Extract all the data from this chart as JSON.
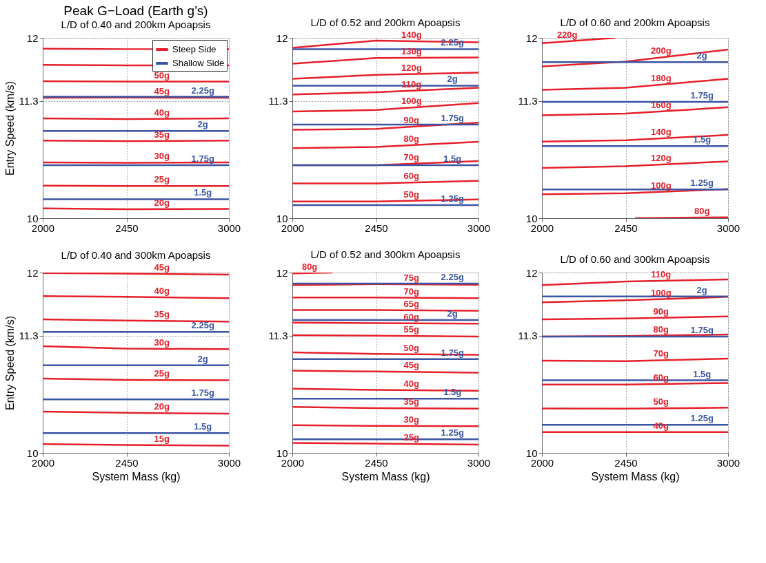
{
  "chart_data": [
    {
      "type": "line",
      "title": "Peak G−Load (Earth g’s)",
      "subtitle": "L/D of 0.40 and 200km Apoapsis",
      "ylabel": "Entry Speed (km/s)",
      "xlim": [
        2000,
        3000
      ],
      "ylim": [
        10,
        12
      ],
      "xticks": [
        2000,
        2450,
        3000
      ],
      "yticks": [
        10,
        11.3,
        12
      ],
      "grid": true,
      "legend": "top right",
      "marker": "none",
      "line_style": "solid",
      "x": [
        2000,
        2450,
        3000
      ],
      "series": [
        {
          "name": "Steep Side",
          "color": "#e5202b",
          "values": [
            11.88,
            11.875,
            11.875
          ]
        },
        {
          "color": "#e5202b",
          "values": [
            11.7,
            11.695,
            11.695
          ]
        },
        {
          "color": "#e5202b",
          "values": [
            11.52,
            11.515,
            11.515
          ]
        },
        {
          "color": "#e5202b",
          "values": [
            11.335,
            11.337,
            11.335
          ]
        },
        {
          "color": "#e5202b",
          "values": [
            11.107,
            11.1,
            11.107
          ]
        },
        {
          "color": "#e5202b",
          "values": [
            10.86,
            10.855,
            10.86
          ]
        },
        {
          "color": "#e5202b",
          "values": [
            10.618,
            10.615,
            10.618
          ]
        },
        {
          "color": "#e5202b",
          "values": [
            10.36,
            10.357,
            10.357
          ]
        },
        {
          "color": "#e5202b",
          "values": [
            10.108,
            10.1,
            10.104
          ]
        },
        {
          "name": "Shallow Side",
          "color": "#3b55a3",
          "values": [
            11.347,
            11.347,
            11.347
          ]
        },
        {
          "color": "#3b55a3",
          "values": [
            10.967,
            10.967,
            10.967
          ]
        },
        {
          "color": "#3b55a3",
          "values": [
            10.588,
            10.588,
            10.588
          ]
        },
        {
          "color": "#3b55a3",
          "values": [
            10.21,
            10.21,
            10.21
          ]
        }
      ],
      "annotations": [
        {
          "text": "50g",
          "x": 2640,
          "y": 11.515
        },
        {
          "text": "45g",
          "x": 2640,
          "y": 11.336
        },
        {
          "text": "40g",
          "x": 2640,
          "y": 11.103
        },
        {
          "text": "35g",
          "x": 2640,
          "y": 10.857
        },
        {
          "text": "30g",
          "x": 2640,
          "y": 10.616
        },
        {
          "text": "25g",
          "x": 2640,
          "y": 10.357
        },
        {
          "text": "20g",
          "x": 2640,
          "y": 10.101
        },
        {
          "text": "2.25g",
          "x": 2860,
          "y": 11.347
        },
        {
          "text": "2g",
          "x": 2860,
          "y": 10.967
        },
        {
          "text": "1.75g",
          "x": 2860,
          "y": 10.588
        },
        {
          "text": "1.5g",
          "x": 2860,
          "y": 10.21
        }
      ]
    },
    {
      "type": "line",
      "title": "L/D of 0.52 and 200km Apoapsis",
      "xlim": [
        2000,
        3000
      ],
      "ylim": [
        10,
        12
      ],
      "xticks": [
        2000,
        2450,
        3000
      ],
      "yticks": [
        10,
        11.3,
        12
      ],
      "grid": true,
      "marker": "none",
      "line_style": "solid",
      "x": [
        2000,
        2450,
        3000
      ],
      "series": [
        {
          "color": "#e5202b",
          "values": [
            11.89,
            11.97,
            11.95
          ]
        },
        {
          "color": "#e5202b",
          "values": [
            11.714,
            11.776,
            11.783
          ]
        },
        {
          "color": "#e5202b",
          "values": [
            11.545,
            11.59,
            11.615
          ]
        },
        {
          "color": "#e5202b",
          "values": [
            11.373,
            11.396,
            11.446
          ]
        },
        {
          "color": "#e5202b",
          "values": [
            11.183,
            11.2,
            11.276
          ]
        },
        {
          "color": "#e5202b",
          "values": [
            10.98,
            10.99,
            11.06
          ]
        },
        {
          "color": "#e5202b",
          "values": [
            10.777,
            10.79,
            10.847
          ]
        },
        {
          "color": "#e5202b",
          "values": [
            10.588,
            10.588,
            10.634
          ]
        },
        {
          "color": "#e5202b",
          "values": [
            10.385,
            10.385,
            10.415
          ]
        },
        {
          "color": "#e5202b",
          "values": [
            10.185,
            10.185,
            10.208
          ]
        },
        {
          "color": "#3b55a3",
          "values": [
            11.875,
            11.875,
            11.875
          ]
        },
        {
          "color": "#3b55a3",
          "values": [
            11.47,
            11.47,
            11.47
          ]
        },
        {
          "color": "#3b55a3",
          "values": [
            11.038,
            11.038,
            11.038
          ]
        },
        {
          "color": "#3b55a3",
          "values": [
            10.588,
            10.588,
            10.588
          ]
        },
        {
          "color": "#3b55a3",
          "values": [
            10.145,
            10.145,
            10.145
          ]
        }
      ],
      "annotations": [
        {
          "text": "140g",
          "x": 2640,
          "y": 11.963
        },
        {
          "text": "130g",
          "x": 2640,
          "y": 11.778
        },
        {
          "text": "120g",
          "x": 2640,
          "y": 11.599
        },
        {
          "text": "110g",
          "x": 2640,
          "y": 11.413
        },
        {
          "text": "100g",
          "x": 2640,
          "y": 11.226
        },
        {
          "text": "90g",
          "x": 2640,
          "y": 11.014
        },
        {
          "text": "80g",
          "x": 2640,
          "y": 10.81
        },
        {
          "text": "70g",
          "x": 2640,
          "y": 10.604
        },
        {
          "text": "60g",
          "x": 2640,
          "y": 10.395
        },
        {
          "text": "50g",
          "x": 2640,
          "y": 10.193
        },
        {
          "text": "2.25g",
          "x": 2860,
          "y": 11.875
        },
        {
          "text": "2g",
          "x": 2860,
          "y": 11.47
        },
        {
          "text": "1.75g",
          "x": 2860,
          "y": 11.038
        },
        {
          "text": "1.5g",
          "x": 2860,
          "y": 10.588
        },
        {
          "text": "1.25g",
          "x": 2860,
          "y": 10.145
        }
      ]
    },
    {
      "type": "line",
      "title": "L/D of 0.60 and 200km Apoapsis",
      "xlim": [
        2000,
        3000
      ],
      "ylim": [
        10,
        12
      ],
      "xticks": [
        2000,
        2450,
        3000
      ],
      "yticks": [
        10,
        11.3,
        12
      ],
      "grid": true,
      "marker": "none",
      "line_style": "solid",
      "x": [
        2000,
        2450,
        3000
      ],
      "series": [
        {
          "color": "#e5202b",
          "x": [
            2000,
            2395
          ],
          "values": [
            11.94,
            12.0
          ]
        },
        {
          "color": "#e5202b",
          "values": [
            11.684,
            11.737,
            11.87
          ]
        },
        {
          "color": "#e5202b",
          "values": [
            11.423,
            11.446,
            11.546
          ]
        },
        {
          "color": "#e5202b",
          "values": [
            11.142,
            11.16,
            11.23
          ]
        },
        {
          "color": "#e5202b",
          "values": [
            10.85,
            10.865,
            10.923
          ]
        },
        {
          "color": "#e5202b",
          "values": [
            10.558,
            10.577,
            10.63
          ]
        },
        {
          "color": "#e5202b",
          "values": [
            10.265,
            10.277,
            10.323
          ]
        },
        {
          "color": "#e5202b",
          "x": [
            2500,
            3000
          ],
          "values": [
            10.0,
            10.01
          ]
        },
        {
          "color": "#3b55a3",
          "values": [
            11.73,
            11.73,
            11.73
          ]
        },
        {
          "color": "#3b55a3",
          "values": [
            11.29,
            11.29,
            11.29
          ]
        },
        {
          "color": "#3b55a3",
          "values": [
            10.8,
            10.8,
            10.8
          ]
        },
        {
          "color": "#3b55a3",
          "values": [
            10.318,
            10.318,
            10.318
          ]
        }
      ],
      "annotations": [
        {
          "text": "220g",
          "x": 2136,
          "y": 11.961
        },
        {
          "text": "200g",
          "x": 2640,
          "y": 11.783
        },
        {
          "text": "180g",
          "x": 2640,
          "y": 11.48
        },
        {
          "text": "160g",
          "x": 2640,
          "y": 11.184
        },
        {
          "text": "140g",
          "x": 2640,
          "y": 10.885
        },
        {
          "text": "120g",
          "x": 2640,
          "y": 10.595
        },
        {
          "text": "100g",
          "x": 2640,
          "y": 10.293
        },
        {
          "text": "80g",
          "x": 2860,
          "y": 10.007
        },
        {
          "text": "2g",
          "x": 2860,
          "y": 11.73
        },
        {
          "text": "1.75g",
          "x": 2860,
          "y": 11.29
        },
        {
          "text": "1.5g",
          "x": 2860,
          "y": 10.8
        },
        {
          "text": "1.25g",
          "x": 2860,
          "y": 10.318
        }
      ]
    },
    {
      "type": "line",
      "title": "L/D of 0.40 and 300km Apoapsis",
      "xlabel": "System Mass (kg)",
      "ylabel": "Entry Speed (km/s)",
      "xlim": [
        2000,
        3000
      ],
      "ylim": [
        10,
        12
      ],
      "xticks": [
        2000,
        2450,
        3000
      ],
      "yticks": [
        10,
        11.3,
        12
      ],
      "grid": true,
      "marker": "none",
      "line_style": "solid",
      "x": [
        2000,
        2450,
        3000
      ],
      "series": [
        {
          "color": "#e5202b",
          "values": [
            11.995,
            11.988,
            11.977
          ]
        },
        {
          "color": "#e5202b",
          "values": [
            11.739,
            11.73,
            11.716
          ]
        },
        {
          "color": "#e5202b",
          "values": [
            11.48,
            11.468,
            11.457
          ]
        },
        {
          "color": "#e5202b",
          "values": [
            11.184,
            11.156,
            11.151
          ]
        },
        {
          "color": "#e5202b",
          "values": [
            10.825,
            10.809,
            10.805
          ]
        },
        {
          "color": "#e5202b",
          "values": [
            10.458,
            10.444,
            10.435
          ]
        },
        {
          "color": "#e5202b",
          "values": [
            10.097,
            10.088,
            10.081
          ]
        },
        {
          "color": "#3b55a3",
          "values": [
            11.341,
            11.341,
            11.341
          ]
        },
        {
          "color": "#3b55a3",
          "values": [
            10.971,
            10.971,
            10.971
          ]
        },
        {
          "color": "#3b55a3",
          "values": [
            10.594,
            10.594,
            10.594
          ]
        },
        {
          "color": "#3b55a3",
          "values": [
            10.22,
            10.22,
            10.22
          ]
        }
      ],
      "annotations": [
        {
          "text": "45g",
          "x": 2640,
          "y": 11.984
        },
        {
          "text": "40g",
          "x": 2640,
          "y": 11.725
        },
        {
          "text": "35g",
          "x": 2640,
          "y": 11.464
        },
        {
          "text": "30g",
          "x": 2640,
          "y": 11.154
        },
        {
          "text": "25g",
          "x": 2640,
          "y": 10.808
        },
        {
          "text": "20g",
          "x": 2640,
          "y": 10.441
        },
        {
          "text": "15g",
          "x": 2640,
          "y": 10.086
        },
        {
          "text": "2.25g",
          "x": 2860,
          "y": 11.341
        },
        {
          "text": "2g",
          "x": 2860,
          "y": 10.971
        },
        {
          "text": "1.75g",
          "x": 2860,
          "y": 10.594
        },
        {
          "text": "1.5g",
          "x": 2860,
          "y": 10.22
        }
      ]
    },
    {
      "type": "line",
      "title": "L/D of 0.52 and 300km Apoapsis",
      "xlabel": "System Mass (kg)",
      "xlim": [
        2000,
        3000
      ],
      "ylim": [
        10,
        12
      ],
      "xticks": [
        2000,
        2450,
        3000
      ],
      "yticks": [
        10,
        11.3,
        12
      ],
      "grid": true,
      "marker": "none",
      "line_style": "solid",
      "x": [
        2000,
        2450,
        3000
      ],
      "series": [
        {
          "color": "#e5202b",
          "x": [
            2000,
            2216
          ],
          "values": [
            11.99,
            12.0
          ]
        },
        {
          "color": "#e5202b",
          "values": [
            11.86,
            11.873,
            11.865
          ]
        },
        {
          "color": "#e5202b",
          "values": [
            11.723,
            11.723,
            11.716
          ]
        },
        {
          "color": "#e5202b",
          "values": [
            11.584,
            11.584,
            11.577
          ]
        },
        {
          "color": "#e5202b",
          "values": [
            11.445,
            11.438,
            11.434
          ]
        },
        {
          "color": "#e5202b",
          "values": [
            11.306,
            11.3,
            11.29
          ]
        },
        {
          "color": "#e5202b",
          "values": [
            11.114,
            11.098,
            11.087
          ]
        },
        {
          "color": "#e5202b",
          "values": [
            10.913,
            10.902,
            10.89
          ]
        },
        {
          "color": "#e5202b",
          "values": [
            10.712,
            10.698,
            10.689
          ]
        },
        {
          "color": "#e5202b",
          "values": [
            10.509,
            10.497,
            10.49
          ]
        },
        {
          "color": "#e5202b",
          "values": [
            10.307,
            10.3,
            10.296
          ]
        },
        {
          "color": "#e5202b",
          "values": [
            10.11,
            10.104,
            10.092
          ]
        },
        {
          "color": "#3b55a3",
          "values": [
            11.877,
            11.877,
            11.877
          ]
        },
        {
          "color": "#3b55a3",
          "values": [
            11.473,
            11.473,
            11.473
          ]
        },
        {
          "color": "#3b55a3",
          "values": [
            11.04,
            11.04,
            11.04
          ]
        },
        {
          "color": "#3b55a3",
          "values": [
            10.601,
            10.601,
            10.601
          ]
        },
        {
          "color": "#3b55a3",
          "values": [
            10.15,
            10.15,
            10.15
          ]
        }
      ],
      "annotations": [
        {
          "text": "80g",
          "x": 2093,
          "y": 11.994
        },
        {
          "text": "75g",
          "x": 2640,
          "y": 11.87
        },
        {
          "text": "70g",
          "x": 2640,
          "y": 11.721
        },
        {
          "text": "65g",
          "x": 2640,
          "y": 11.582
        },
        {
          "text": "60g",
          "x": 2640,
          "y": 11.437
        },
        {
          "text": "55g",
          "x": 2640,
          "y": 11.297
        },
        {
          "text": "50g",
          "x": 2640,
          "y": 11.094
        },
        {
          "text": "45g",
          "x": 2640,
          "y": 10.898
        },
        {
          "text": "40g",
          "x": 2640,
          "y": 10.695
        },
        {
          "text": "35g",
          "x": 2640,
          "y": 10.495
        },
        {
          "text": "30g",
          "x": 2640,
          "y": 10.299
        },
        {
          "text": "25g",
          "x": 2640,
          "y": 10.1
        },
        {
          "text": "2.25g",
          "x": 2860,
          "y": 11.877
        },
        {
          "text": "2g",
          "x": 2860,
          "y": 11.473
        },
        {
          "text": "1.75g",
          "x": 2860,
          "y": 11.04
        },
        {
          "text": "1.5g",
          "x": 2860,
          "y": 10.601
        },
        {
          "text": "1.25g",
          "x": 2860,
          "y": 10.15
        }
      ]
    },
    {
      "type": "line",
      "title": "L/D of 0.60 and 300km Apoapsis",
      "xlabel": "System Mass (kg)",
      "xlim": [
        2000,
        3000
      ],
      "ylim": [
        10,
        12
      ],
      "xticks": [
        2000,
        2450,
        3000
      ],
      "yticks": [
        10,
        11.3,
        12
      ],
      "grid": true,
      "marker": "none",
      "line_style": "solid",
      "x": [
        2000,
        2450,
        3000
      ],
      "series": [
        {
          "color": "#e5202b",
          "values": [
            11.861,
            11.9,
            11.924
          ]
        },
        {
          "color": "#e5202b",
          "values": [
            11.669,
            11.692,
            11.73
          ]
        },
        {
          "color": "#e5202b",
          "values": [
            11.48,
            11.491,
            11.514
          ]
        },
        {
          "color": "#e5202b",
          "values": [
            11.29,
            11.295,
            11.313
          ]
        },
        {
          "color": "#e5202b",
          "values": [
            11.022,
            11.017,
            11.045
          ]
        },
        {
          "color": "#e5202b",
          "values": [
            10.758,
            10.758,
            10.775
          ]
        },
        {
          "color": "#e5202b",
          "values": [
            10.492,
            10.49,
            10.502
          ]
        },
        {
          "color": "#e5202b",
          "values": [
            10.231,
            10.231,
            10.231
          ]
        },
        {
          "color": "#3b55a3",
          "values": [
            11.734,
            11.734,
            11.734
          ]
        },
        {
          "color": "#3b55a3",
          "values": [
            11.29,
            11.29,
            11.29
          ]
        },
        {
          "color": "#3b55a3",
          "values": [
            10.805,
            10.805,
            10.805
          ]
        },
        {
          "color": "#3b55a3",
          "values": [
            10.312,
            10.312,
            10.312
          ]
        }
      ],
      "annotations": [
        {
          "text": "110g",
          "x": 2640,
          "y": 11.908
        },
        {
          "text": "100g",
          "x": 2640,
          "y": 11.705
        },
        {
          "text": "90g",
          "x": 2640,
          "y": 11.499
        },
        {
          "text": "80g",
          "x": 2640,
          "y": 11.301
        },
        {
          "text": "70g",
          "x": 2640,
          "y": 11.027
        },
        {
          "text": "60g",
          "x": 2640,
          "y": 10.764
        },
        {
          "text": "50g",
          "x": 2640,
          "y": 10.494
        },
        {
          "text": "40g",
          "x": 2640,
          "y": 10.231
        },
        {
          "text": "2g",
          "x": 2860,
          "y": 11.734
        },
        {
          "text": "1.75g",
          "x": 2860,
          "y": 11.29
        },
        {
          "text": "1.5g",
          "x": 2860,
          "y": 10.805
        },
        {
          "text": "1.25g",
          "x": 2860,
          "y": 10.312
        }
      ]
    }
  ]
}
